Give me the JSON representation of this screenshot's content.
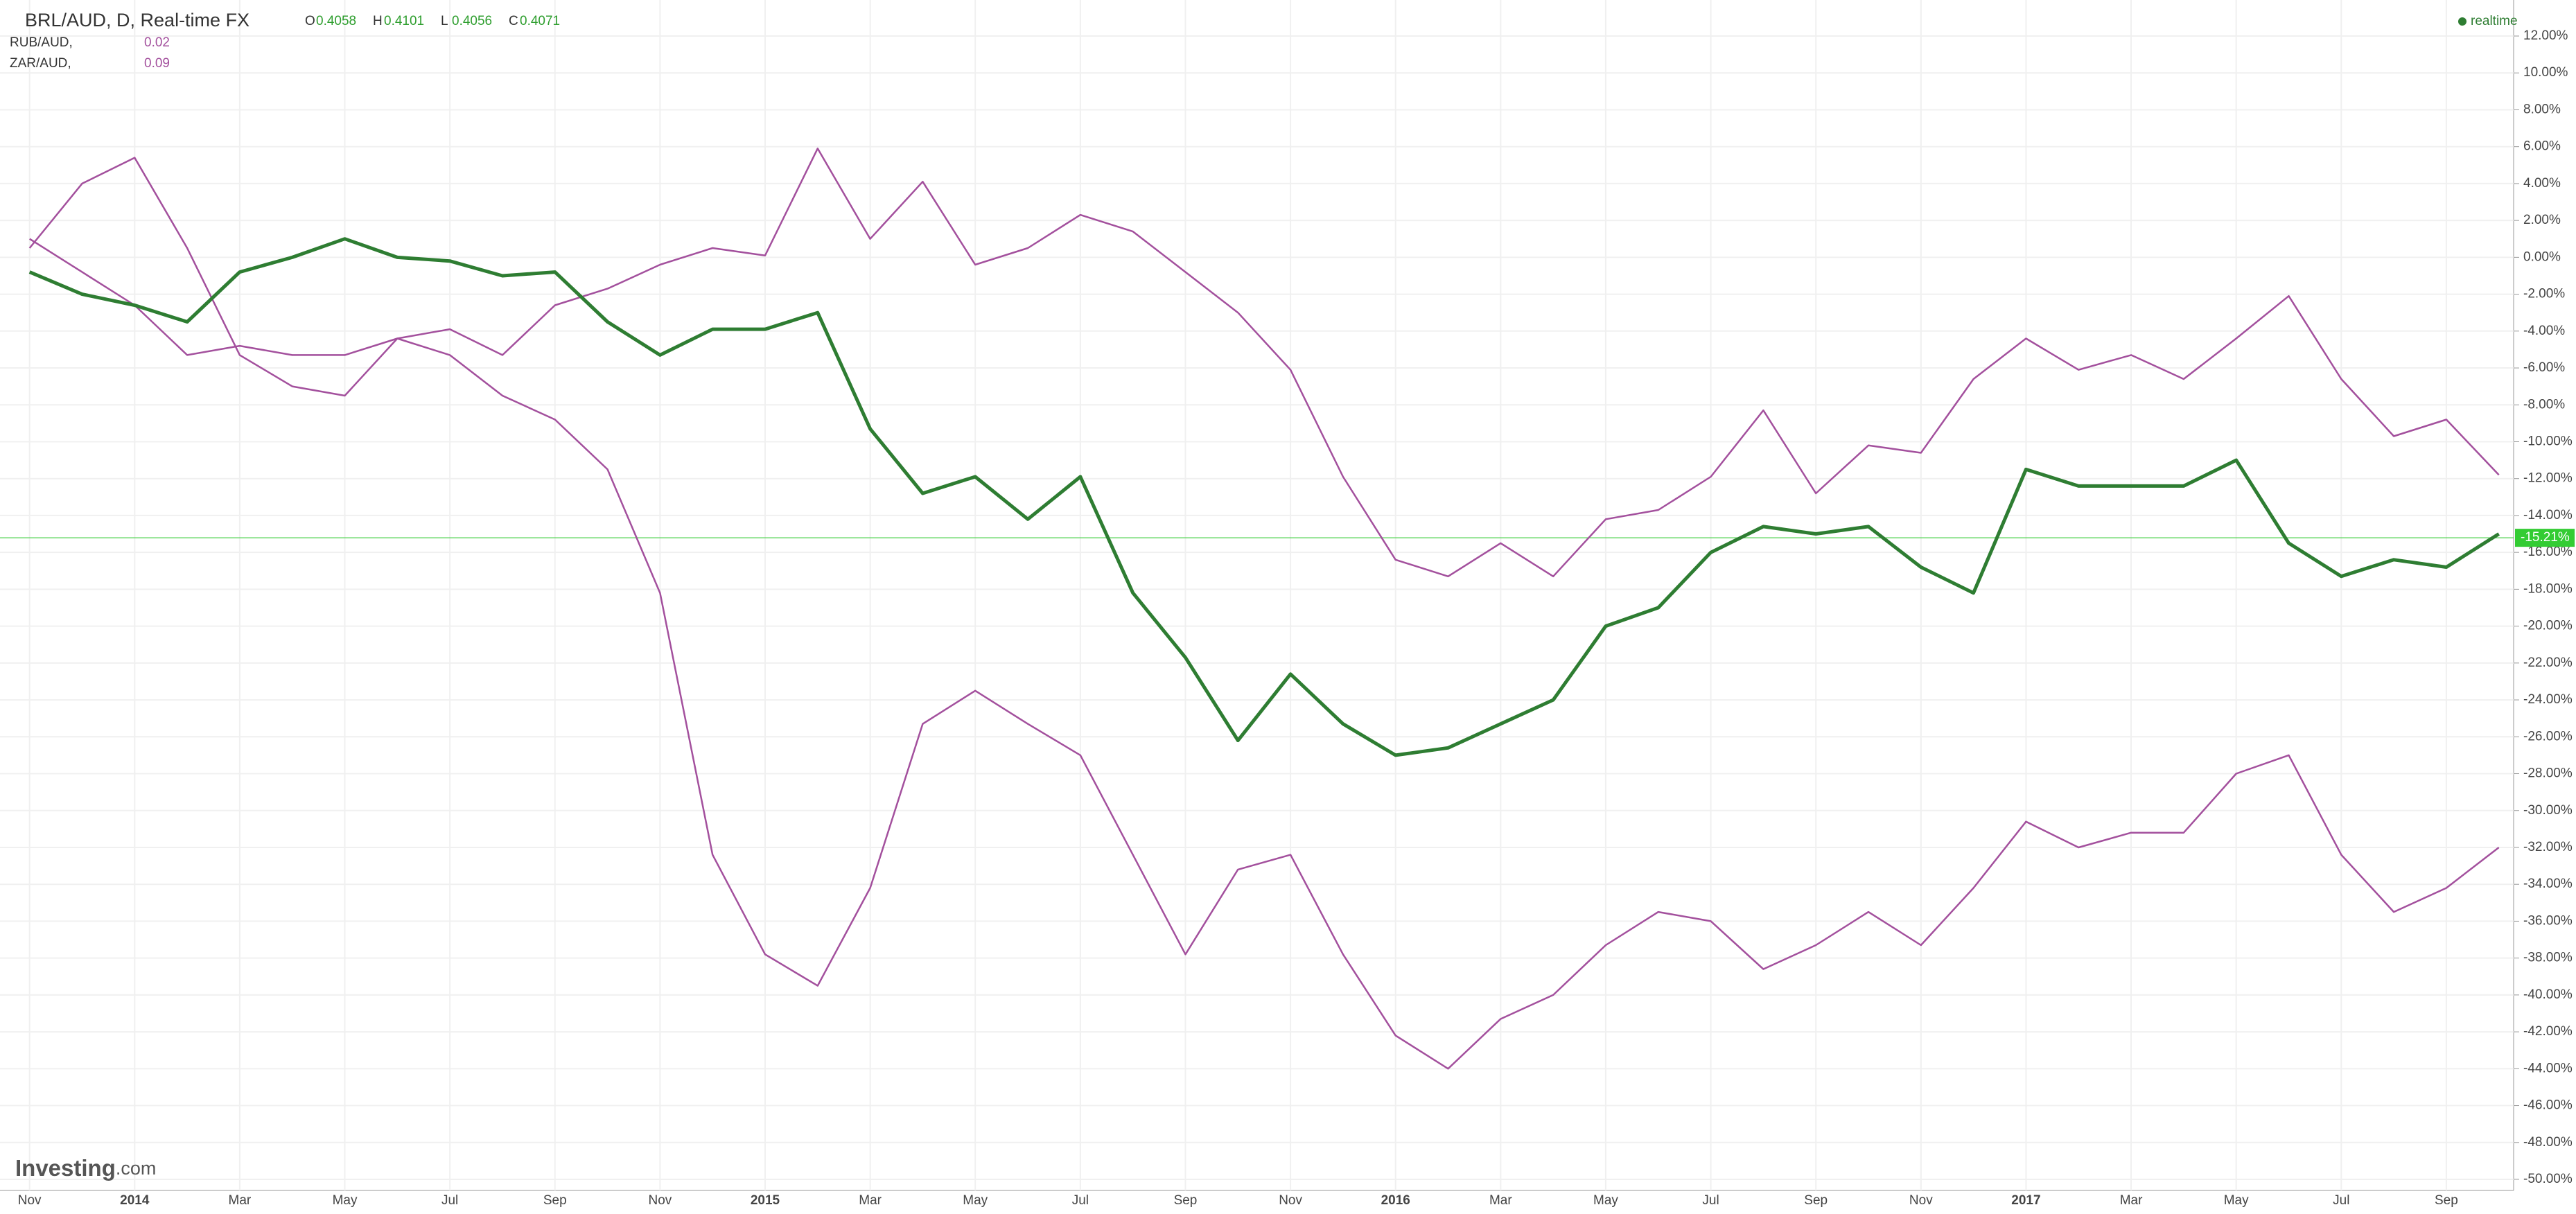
{
  "header": {
    "ohlc": [
      {
        "key": "O",
        "value": "0.4058"
      },
      {
        "key": "H",
        "value": "0.4101"
      },
      {
        "key": "L",
        "value": "0.4056"
      },
      {
        "key": "C",
        "value": "0.4071"
      }
    ],
    "status": "realtime",
    "logo_main": "Investing",
    "logo_suffix": ".com"
  },
  "chart_data": {
    "type": "line",
    "categories": [
      "Nov",
      null,
      "2014",
      null,
      "Mar",
      null,
      "May",
      null,
      "Jul",
      null,
      "Sep",
      null,
      "Nov",
      null,
      "2015",
      null,
      "Mar",
      null,
      "May",
      null,
      "Jul",
      null,
      "Sep",
      null,
      "Nov",
      null,
      "2016",
      null,
      "Mar",
      null,
      "May",
      null,
      "Jul",
      null,
      "Sep",
      null,
      "Nov",
      null,
      "2017",
      null,
      "Mar",
      null,
      "May",
      null,
      "Jul",
      null,
      "Sep",
      null
    ],
    "series": [
      {
        "name": "BRL/AUD, D, Real-time FX",
        "color": "#2e7d32",
        "values": [
          -0.8,
          -2,
          -2.6,
          -3.5,
          -0.8,
          0,
          1,
          0,
          -0.2,
          -1,
          -0.8,
          -3.5,
          -5.3,
          -3.9,
          -3.9,
          -3,
          -9.3,
          -12.8,
          -11.9,
          -14.2,
          -11.9,
          -18.2,
          -21.7,
          -26.2,
          -22.6,
          -25.3,
          -27,
          -26.6,
          -25.3,
          -24,
          -20,
          -19,
          -16,
          -14.6,
          -15,
          -14.6,
          -16.8,
          -18.2,
          -11.5,
          -12.4,
          -12.4,
          -12.4,
          -11,
          -15.5,
          -17.3,
          -16.4,
          -16.8,
          -15
        ]
      },
      {
        "name": "RUB/AUD,",
        "legend_value": "0.02",
        "color": "#a3509d",
        "values": [
          1,
          -0.8,
          -2.6,
          -5.3,
          -4.8,
          -5.3,
          -5.3,
          -4.4,
          -5.3,
          -7.5,
          -8.8,
          -11.5,
          -18.2,
          -32.4,
          -37.8,
          -39.5,
          -34.2,
          -25.3,
          -23.5,
          -25.3,
          -27,
          -32.4,
          -37.8,
          -33.2,
          -32.4,
          -37.8,
          -42.2,
          -44,
          -41.3,
          -40,
          -37.3,
          -35.5,
          -36,
          -38.6,
          -37.3,
          -35.5,
          -37.3,
          -34.2,
          -30.6,
          -32,
          -31.2,
          -31.2,
          -28,
          -27,
          -32.4,
          -35.5,
          -34.2,
          -32
        ]
      },
      {
        "name": "ZAR/AUD,",
        "legend_value": "0.09",
        "color": "#a3509d",
        "values": [
          0.5,
          4,
          5.4,
          0.5,
          -5.3,
          -7,
          -7.5,
          -4.4,
          -3.9,
          -5.3,
          -2.6,
          -1.7,
          -0.4,
          0.5,
          0.1,
          5.9,
          1,
          4.1,
          -0.4,
          0.5,
          2.3,
          1.4,
          -0.8,
          -3,
          -6.1,
          -11.9,
          -16.4,
          -17.3,
          -15.5,
          -17.3,
          -14.2,
          -13.7,
          -11.9,
          -8.3,
          -12.8,
          -10.2,
          -10.6,
          -6.6,
          -4.4,
          -6.1,
          -5.3,
          -6.6,
          -4.4,
          -2.1,
          -6.6,
          -9.7,
          -8.8,
          -11.8
        ]
      }
    ],
    "last_price": {
      "value": -15.21,
      "label": "-15.21%",
      "color": "#33cc33"
    },
    "ylim": [
      12.3,
      -50.3
    ],
    "yticks": [
      {
        "value": 12,
        "label": "12.00%"
      },
      {
        "value": 10,
        "label": "10.00%"
      },
      {
        "value": 8,
        "label": "8.00%"
      },
      {
        "value": 6,
        "label": "6.00%"
      },
      {
        "value": 4,
        "label": "4.00%"
      },
      {
        "value": 2,
        "label": "2.00%"
      },
      {
        "value": 0,
        "label": "0.00%"
      },
      {
        "value": -2,
        "label": "-2.00%"
      },
      {
        "value": -4,
        "label": "-4.00%"
      },
      {
        "value": -6,
        "label": "-6.00%"
      },
      {
        "value": -8,
        "label": "-8.00%"
      },
      {
        "value": -10,
        "label": "-10.00%"
      },
      {
        "value": -12,
        "label": "-12.00%"
      },
      {
        "value": -14,
        "label": "-14.00%"
      },
      {
        "value": -16,
        "label": "-16.00%"
      },
      {
        "value": -18,
        "label": "-18.00%"
      },
      {
        "value": -20,
        "label": "-20.00%"
      },
      {
        "value": -22,
        "label": "-22.00%"
      },
      {
        "value": -24,
        "label": "-24.00%"
      },
      {
        "value": -26,
        "label": "-26.00%"
      },
      {
        "value": -28,
        "label": "-28.00%"
      },
      {
        "value": -30,
        "label": "-30.00%"
      },
      {
        "value": -32,
        "label": "-32.00%"
      },
      {
        "value": -34,
        "label": "-34.00%"
      },
      {
        "value": -36,
        "label": "-36.00%"
      },
      {
        "value": -38,
        "label": "-38.00%"
      },
      {
        "value": -40,
        "label": "-40.00%"
      },
      {
        "value": -42,
        "label": "-42.00%"
      },
      {
        "value": -44,
        "label": "-44.00%"
      },
      {
        "value": -46,
        "label": "-46.00%"
      },
      {
        "value": -48,
        "label": "-48.00%"
      },
      {
        "value": -50,
        "label": "-50.00%"
      }
    ],
    "grid": true
  }
}
